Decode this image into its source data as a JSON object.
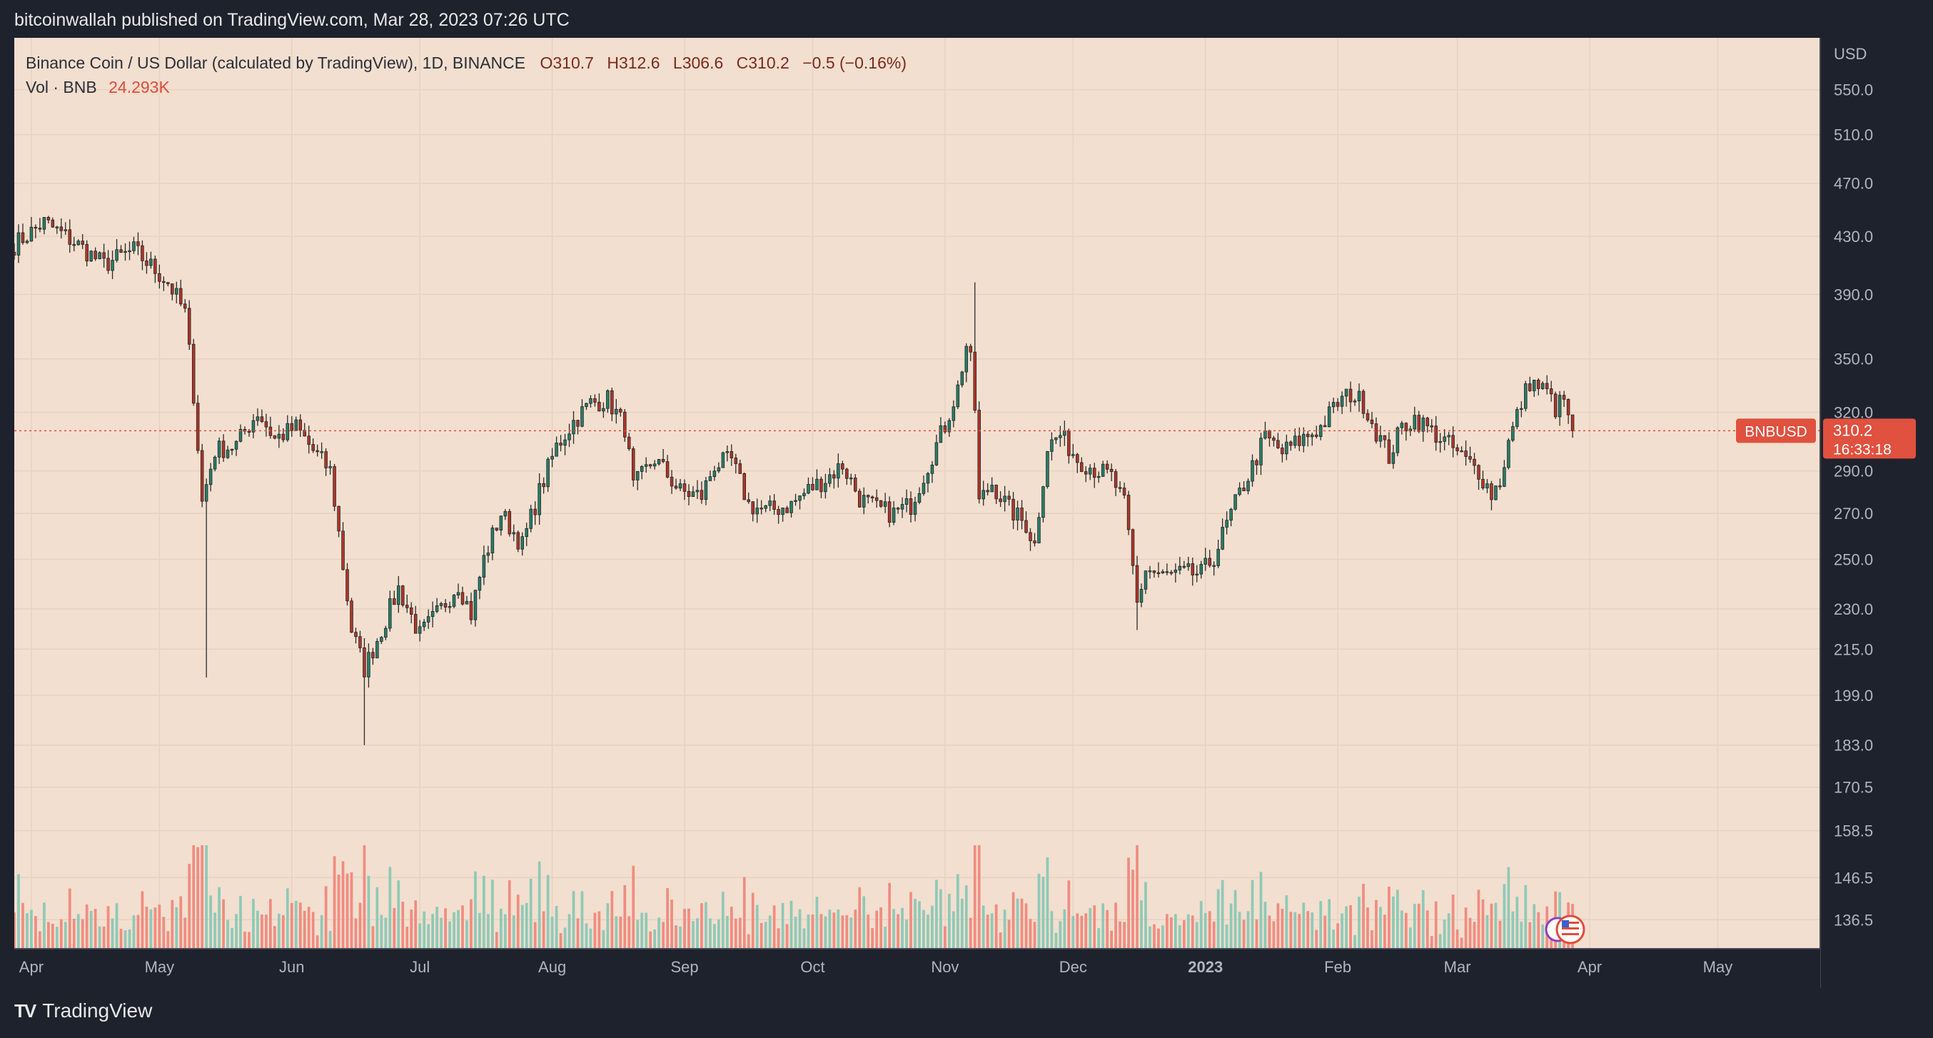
{
  "header": {
    "published": "bitcoinwallah published on TradingView.com, Mar 28, 2023 07:26 UTC"
  },
  "legend": {
    "symbol": "Binance Coin / US Dollar (calculated by TradingView), 1D, BINANCE",
    "open": "O310.7",
    "high": "H312.6",
    "low": "L306.6",
    "close": "C310.2",
    "change": "−0.5 (−0.16%)",
    "volume_label": "Vol · BNB",
    "volume_value": "24.293K"
  },
  "price_axis": {
    "currency": "USD",
    "ticks": [
      "550.0",
      "510.0",
      "470.0",
      "430.0",
      "390.0",
      "350.0",
      "320.0",
      "290.0",
      "270.0",
      "250.0",
      "230.0",
      "215.0",
      "199.0",
      "183.0",
      "170.5",
      "158.5",
      "146.5",
      "136.5"
    ]
  },
  "last_price": {
    "ticker": "BNBUSD",
    "price": "310.2",
    "countdown": "16:33:18"
  },
  "time_axis": [
    "Apr",
    "May",
    "Jun",
    "Jul",
    "Aug",
    "Sep",
    "Oct",
    "Nov",
    "Dec",
    "2023",
    "Feb",
    "Mar",
    "Apr",
    "May"
  ],
  "footer": {
    "brand": "TradingView"
  },
  "colors": {
    "up": "#26806a",
    "down": "#b2362a",
    "vol_up": "#8fc9b7",
    "vol_down": "#f08c80",
    "background": "#f2dfcf",
    "last_price": "#e0513f"
  },
  "chart_data": {
    "type": "candlestick",
    "title": "Binance Coin / US Dollar (calculated by TradingView), 1D, BINANCE",
    "ylabel": "USD",
    "y_scale": "log",
    "ylim": [
      130,
      600
    ],
    "x_start": "2022-03-28",
    "x_end": "2023-05-25",
    "grid": true,
    "anchors": [
      [
        "2022-03-28",
        424
      ],
      [
        "2022-04-04",
        440
      ],
      [
        "2022-04-10",
        428
      ],
      [
        "2022-04-18",
        410
      ],
      [
        "2022-04-25",
        420
      ],
      [
        "2022-05-03",
        398
      ],
      [
        "2022-05-07",
        378
      ],
      [
        "2022-05-09",
        330
      ],
      [
        "2022-05-11",
        275
      ],
      [
        "2022-05-14",
        300
      ],
      [
        "2022-05-19",
        303
      ],
      [
        "2022-05-24",
        320
      ],
      [
        "2022-05-28",
        306
      ],
      [
        "2022-06-02",
        312
      ],
      [
        "2022-06-06",
        300
      ],
      [
        "2022-06-10",
        290
      ],
      [
        "2022-06-13",
        247
      ],
      [
        "2022-06-15",
        222
      ],
      [
        "2022-06-18",
        208
      ],
      [
        "2022-06-22",
        222
      ],
      [
        "2022-06-26",
        238
      ],
      [
        "2022-07-01",
        220
      ],
      [
        "2022-07-06",
        230
      ],
      [
        "2022-07-10",
        240
      ],
      [
        "2022-07-13",
        228
      ],
      [
        "2022-07-16",
        250
      ],
      [
        "2022-07-20",
        270
      ],
      [
        "2022-07-25",
        256
      ],
      [
        "2022-07-29",
        280
      ],
      [
        "2022-08-02",
        302
      ],
      [
        "2022-08-06",
        315
      ],
      [
        "2022-08-10",
        325
      ],
      [
        "2022-08-14",
        327
      ],
      [
        "2022-08-18",
        312
      ],
      [
        "2022-08-20",
        282
      ],
      [
        "2022-08-25",
        296
      ],
      [
        "2022-08-31",
        280
      ],
      [
        "2022-09-05",
        278
      ],
      [
        "2022-09-08",
        293
      ],
      [
        "2022-09-12",
        295
      ],
      [
        "2022-09-16",
        274
      ],
      [
        "2022-09-20",
        271
      ],
      [
        "2022-09-26",
        274
      ],
      [
        "2022-09-30",
        281
      ],
      [
        "2022-10-04",
        286
      ],
      [
        "2022-10-08",
        293
      ],
      [
        "2022-10-12",
        277
      ],
      [
        "2022-10-16",
        272
      ],
      [
        "2022-10-20",
        270
      ],
      [
        "2022-10-24",
        274
      ],
      [
        "2022-10-27",
        288
      ],
      [
        "2022-11-01",
        313
      ],
      [
        "2022-11-04",
        333
      ],
      [
        "2022-11-06",
        358
      ],
      [
        "2022-11-07",
        348
      ],
      [
        "2022-11-08",
        322
      ],
      [
        "2022-11-09",
        275
      ],
      [
        "2022-11-12",
        284
      ],
      [
        "2022-11-16",
        272
      ],
      [
        "2022-11-20",
        265
      ],
      [
        "2022-11-22",
        256
      ],
      [
        "2022-11-25",
        302
      ],
      [
        "2022-11-28",
        308
      ],
      [
        "2022-12-02",
        296
      ],
      [
        "2022-12-06",
        291
      ],
      [
        "2022-12-10",
        287
      ],
      [
        "2022-12-13",
        274
      ],
      [
        "2022-12-16",
        232
      ],
      [
        "2022-12-18",
        246
      ],
      [
        "2022-12-22",
        243
      ],
      [
        "2022-12-27",
        244
      ],
      [
        "2022-12-31",
        244
      ],
      [
        "2023-01-03",
        251
      ],
      [
        "2023-01-06",
        265
      ],
      [
        "2023-01-09",
        279
      ],
      [
        "2023-01-12",
        292
      ],
      [
        "2023-01-15",
        307
      ],
      [
        "2023-01-19",
        299
      ],
      [
        "2023-01-23",
        305
      ],
      [
        "2023-01-28",
        312
      ],
      [
        "2023-02-01",
        325
      ],
      [
        "2023-02-04",
        330
      ],
      [
        "2023-02-07",
        325
      ],
      [
        "2023-02-10",
        310
      ],
      [
        "2023-02-13",
        297
      ],
      [
        "2023-02-16",
        312
      ],
      [
        "2023-02-19",
        317
      ],
      [
        "2023-02-23",
        310
      ],
      [
        "2023-02-27",
        303
      ],
      [
        "2023-03-03",
        295
      ],
      [
        "2023-03-06",
        290
      ],
      [
        "2023-03-09",
        279
      ],
      [
        "2023-03-11",
        285
      ],
      [
        "2023-03-13",
        304
      ],
      [
        "2023-03-16",
        325
      ],
      [
        "2023-03-18",
        337
      ],
      [
        "2023-03-22",
        331
      ],
      [
        "2023-03-24",
        322
      ],
      [
        "2023-03-26",
        327
      ],
      [
        "2023-03-28",
        310.2
      ]
    ],
    "spike_highs": [
      [
        "2022-11-08",
        398
      ]
    ],
    "spike_lows": [
      [
        "2022-05-12",
        205
      ],
      [
        "2022-06-18",
        183
      ],
      [
        "2022-12-16",
        222
      ]
    ],
    "volume_ylim": [
      0,
      120000
    ]
  }
}
